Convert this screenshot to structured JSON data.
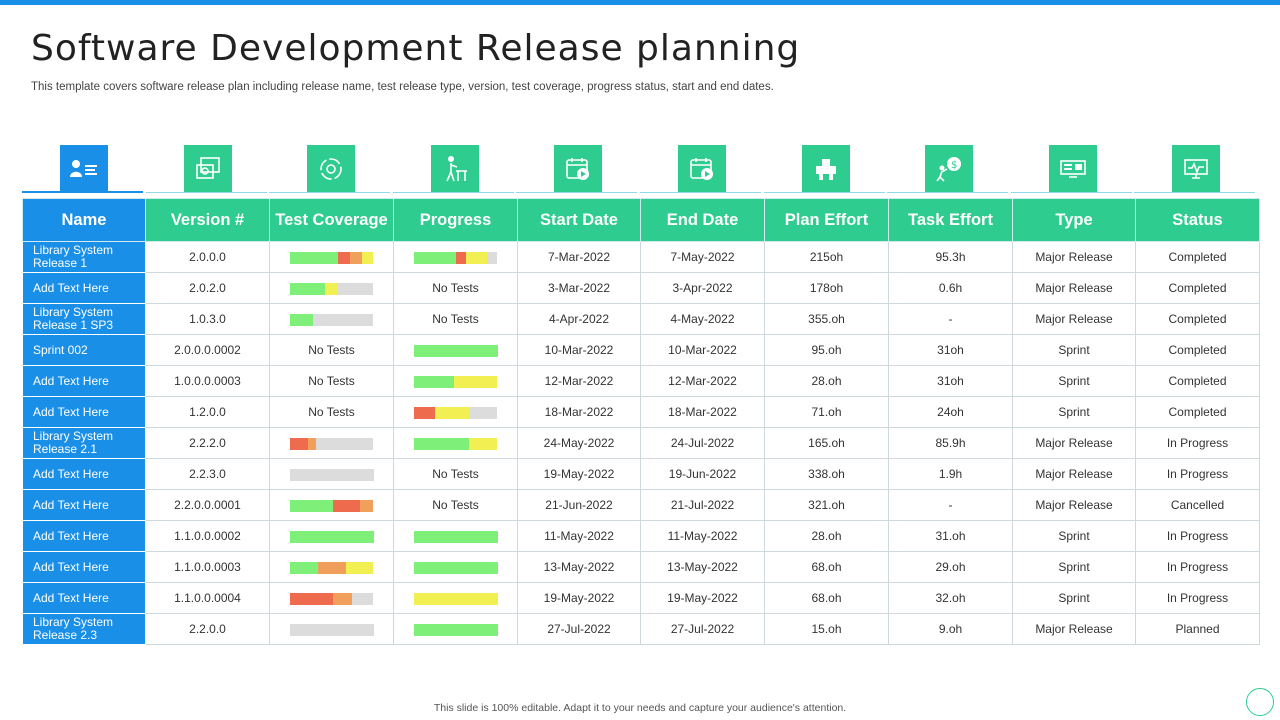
{
  "title": "Software Development Release planning",
  "subtitle": "This template covers software release plan including release name, test release type, version, test coverage, progress status, start and end dates.",
  "footer": "This slide is 100% editable. Adapt it to your needs and capture your audience's attention.",
  "colors": {
    "accent_blue": "#1a8fe8",
    "accent_green": "#2ecc8f",
    "bar_green": "#7ef07a",
    "bar_yellow": "#f2ef52",
    "bar_red": "#ef6b4e",
    "bar_orange": "#f0a05a",
    "bar_gray": "#dcdcdc"
  },
  "header_icons": [
    "id-card-icon",
    "monitor-sync-icon",
    "gear-cycle-icon",
    "worker-desk-icon",
    "calendar-play-icon",
    "calendar-play-icon",
    "pipeline-valve-icon",
    "climbing-coin-icon",
    "server-rack-icon",
    "monitor-pulse-icon"
  ],
  "columns": [
    "Name",
    "Version #",
    "Test Coverage",
    "Progress",
    "Start Date",
    "End Date",
    "Plan Effort",
    "Task Effort",
    "Type",
    "Status"
  ],
  "rows": [
    {
      "name": "Library System Release 1",
      "version": "2.0.0.0",
      "coverage": {
        "bar": [
          [
            "green",
            58
          ],
          [
            "red",
            14
          ],
          [
            "orange",
            14
          ],
          [
            "yellow",
            14
          ]
        ]
      },
      "progress": {
        "bar": [
          [
            "green",
            50
          ],
          [
            "red",
            12
          ],
          [
            "yellow",
            26
          ],
          [
            "gray",
            12
          ]
        ]
      },
      "start": "7-Mar-2022",
      "end": "7-May-2022",
      "plan": "215oh",
      "task": "95.3h",
      "type": "Major Release",
      "status": "Completed"
    },
    {
      "name": "Add Text Here",
      "version": "2.0.2.0",
      "coverage": {
        "bar": [
          [
            "green",
            42
          ],
          [
            "yellow",
            16
          ],
          [
            "gray",
            42
          ]
        ]
      },
      "progress": {
        "text": "No Tests"
      },
      "start": "3-Mar-2022",
      "end": "3-Apr-2022",
      "plan": "178oh",
      "task": "0.6h",
      "type": "Major Release",
      "status": "Completed"
    },
    {
      "name": "Library System Release 1 SP3",
      "version": "1.0.3.0",
      "coverage": {
        "bar": [
          [
            "green",
            28
          ],
          [
            "gray",
            72
          ]
        ]
      },
      "progress": {
        "text": "No Tests"
      },
      "start": "4-Apr-2022",
      "end": "4-May-2022",
      "plan": "355.oh",
      "task": "-",
      "type": "Major Release",
      "status": "Completed"
    },
    {
      "name": "Sprint 002",
      "version": "2.0.0.0.0002",
      "coverage": {
        "text": "No Tests"
      },
      "progress": {
        "bar": [
          [
            "green",
            100
          ]
        ]
      },
      "start": "10-Mar-2022",
      "end": "10-Mar-2022",
      "plan": "95.oh",
      "task": "31oh",
      "type": "Sprint",
      "status": "Completed"
    },
    {
      "name": "Add Text Here",
      "version": "1.0.0.0.0003",
      "coverage": {
        "text": "No Tests"
      },
      "progress": {
        "bar": [
          [
            "green",
            48
          ],
          [
            "yellow",
            52
          ]
        ]
      },
      "start": "12-Mar-2022",
      "end": "12-Mar-2022",
      "plan": "28.oh",
      "task": "31oh",
      "type": "Sprint",
      "status": "Completed"
    },
    {
      "name": "Add Text Here",
      "version": "1.2.0.0",
      "coverage": {
        "text": "No Tests"
      },
      "progress": {
        "bar": [
          [
            "red",
            26
          ],
          [
            "yellow",
            40
          ],
          [
            "gray",
            34
          ]
        ]
      },
      "start": "18-Mar-2022",
      "end": "18-Mar-2022",
      "plan": "71.oh",
      "task": "24oh",
      "type": "Sprint",
      "status": "Completed"
    },
    {
      "name": "Library System Release 2.1",
      "version": "2.2.2.0",
      "coverage": {
        "bar": [
          [
            "red",
            22
          ],
          [
            "orange",
            10
          ],
          [
            "gray",
            68
          ]
        ]
      },
      "progress": {
        "bar": [
          [
            "green",
            66
          ],
          [
            "yellow",
            34
          ]
        ]
      },
      "start": "24-May-2022",
      "end": "24-Jul-2022",
      "plan": "165.oh",
      "task": "85.9h",
      "type": "Major Release",
      "status": "In Progress"
    },
    {
      "name": "Add Text Here",
      "version": "2.2.3.0",
      "coverage": {
        "bar": [
          [
            "gray",
            100
          ]
        ]
      },
      "progress": {
        "text": "No Tests"
      },
      "start": "19-May-2022",
      "end": "19-Jun-2022",
      "plan": "338.oh",
      "task": "1.9h",
      "type": "Major Release",
      "status": "In Progress"
    },
    {
      "name": "Add Text Here",
      "version": "2.2.0.0.0001",
      "coverage": {
        "bar": [
          [
            "green",
            52
          ],
          [
            "red",
            32
          ],
          [
            "orange",
            16
          ]
        ]
      },
      "progress": {
        "text": "No Tests"
      },
      "start": "21-Jun-2022",
      "end": "21-Jul-2022",
      "plan": "321.oh",
      "task": "-",
      "type": "Major Release",
      "status": "Cancelled"
    },
    {
      "name": "Add Text Here",
      "version": "1.1.0.0.0002",
      "coverage": {
        "bar": [
          [
            "green",
            100
          ]
        ]
      },
      "progress": {
        "bar": [
          [
            "green",
            100
          ]
        ]
      },
      "start": "11-May-2022",
      "end": "11-May-2022",
      "plan": "28.oh",
      "task": "31.oh",
      "type": "Sprint",
      "status": "In Progress"
    },
    {
      "name": "Add Text Here",
      "version": "1.1.0.0.0003",
      "coverage": {
        "bar": [
          [
            "green",
            34
          ],
          [
            "orange",
            33
          ],
          [
            "yellow",
            33
          ]
        ]
      },
      "progress": {
        "bar": [
          [
            "green",
            100
          ]
        ]
      },
      "start": "13-May-2022",
      "end": "13-May-2022",
      "plan": "68.oh",
      "task": "29.oh",
      "type": "Sprint",
      "status": "In Progress"
    },
    {
      "name": "Add Text Here",
      "version": "1.1.0.0.0004",
      "coverage": {
        "bar": [
          [
            "red",
            52
          ],
          [
            "orange",
            22
          ],
          [
            "gray",
            26
          ]
        ]
      },
      "progress": {
        "bar": [
          [
            "yellow",
            100
          ]
        ]
      },
      "start": "19-May-2022",
      "end": "19-May-2022",
      "plan": "68.oh",
      "task": "32.oh",
      "type": "Sprint",
      "status": "In Progress"
    },
    {
      "name": "Library System Release 2.3",
      "version": "2.2.0.0",
      "coverage": {
        "bar": [
          [
            "gray",
            100
          ]
        ]
      },
      "progress": {
        "bar": [
          [
            "green",
            100
          ]
        ]
      },
      "start": "27-Jul-2022",
      "end": "27-Jul-2022",
      "plan": "15.oh",
      "task": "9.oh",
      "type": "Major Release",
      "status": "Planned"
    }
  ]
}
